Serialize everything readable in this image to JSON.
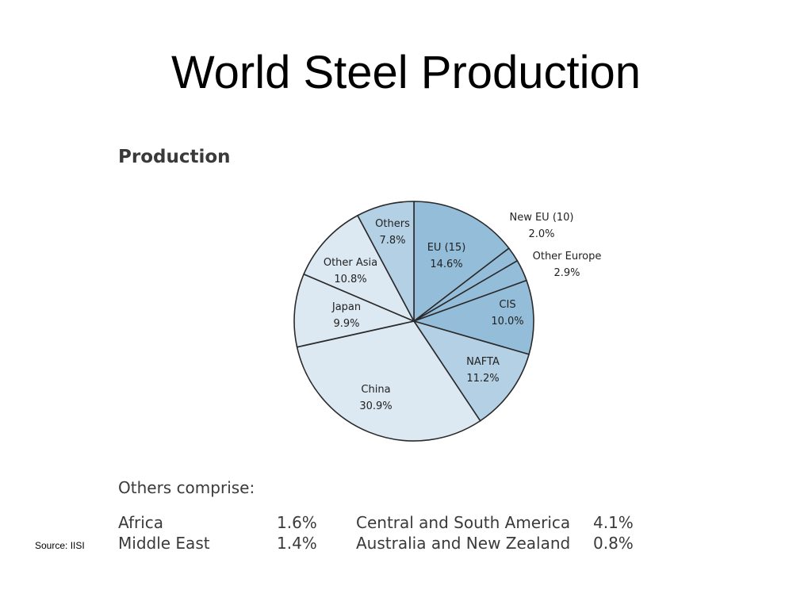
{
  "slide": {
    "title": "World Steel Production",
    "source": "Source: IISI"
  },
  "chart_data": {
    "type": "pie",
    "title": "Production",
    "start_angle_deg": 0,
    "direction": "clockwise",
    "slices": [
      {
        "label": "EU (15)",
        "pct_label": "14.6%",
        "value": 14.6,
        "color": "#93bdd9"
      },
      {
        "label": "New  EU (10)",
        "pct_label": "2.0%",
        "value": 2.0,
        "color": "#93bdd9",
        "external": true
      },
      {
        "label": "Other Europe",
        "pct_label": "2.9%",
        "value": 2.9,
        "color": "#93bdd9",
        "external": true
      },
      {
        "label": "CIS",
        "pct_label": "10.0%",
        "value": 10.0,
        "color": "#93bdd9"
      },
      {
        "label": "NAFTA",
        "pct_label": "11.2%",
        "value": 11.2,
        "color": "#b4d0e4"
      },
      {
        "label": "China",
        "pct_label": "30.9%",
        "value": 30.9,
        "color": "#dce8f2"
      },
      {
        "label": "Japan",
        "pct_label": "9.9%",
        "value": 9.9,
        "color": "#dce8f2"
      },
      {
        "label": "Other Asia",
        "pct_label": "10.8%",
        "value": 10.8,
        "color": "#dce8f2"
      },
      {
        "label": "Others",
        "pct_label": "7.8%",
        "value": 7.8,
        "color": "#b4d0e4"
      }
    ]
  },
  "others_comprise": {
    "heading": "Others comprise:",
    "rows": [
      {
        "left_name": "Africa",
        "left_value": "1.6%",
        "right_name": "Central and South America",
        "right_value": "4.1%"
      },
      {
        "left_name": "Middle East",
        "left_value": "1.4%",
        "right_name": "Australia and New Zealand",
        "right_value": "0.8%"
      }
    ]
  }
}
